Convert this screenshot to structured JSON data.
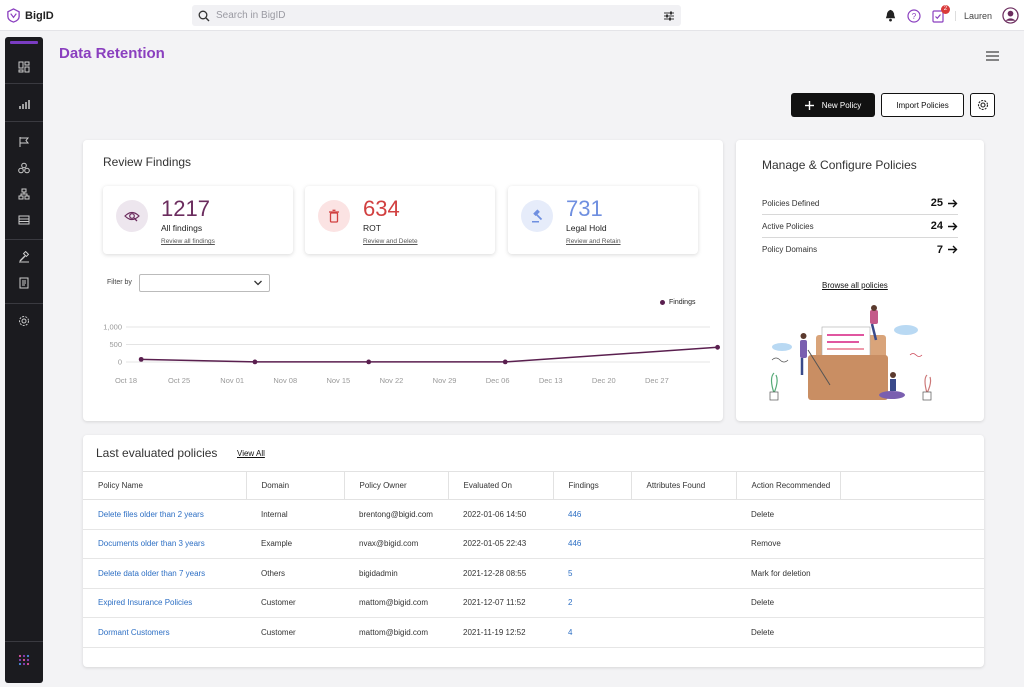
{
  "app": {
    "name": "BigID"
  },
  "search": {
    "placeholder": "Search in BigID"
  },
  "header": {
    "user": "Lauren",
    "notification_badge": "2"
  },
  "page": {
    "title": "Data Retention"
  },
  "toolbar": {
    "new_policy": "New Policy",
    "import_policies": "Import Policies"
  },
  "review": {
    "title": "Review Findings",
    "stats": [
      {
        "value": "1217",
        "label": "All findings",
        "link": "Review all findings",
        "color": "#6b2c5e",
        "bg": "#ede6ee"
      },
      {
        "value": "634",
        "label": "ROT",
        "link": "Review and Delete",
        "color": "#d14040",
        "bg": "#fbe3e3"
      },
      {
        "value": "731",
        "label": "Legal Hold",
        "link": "Review and Retain",
        "color": "#6f8fe0",
        "bg": "#e6ecfa"
      }
    ],
    "filter_label": "Filter by",
    "filter_value": ""
  },
  "chart_data": {
    "type": "line",
    "series": [
      {
        "name": "Findings",
        "color": "#5a1f4f",
        "points": [
          {
            "x": "2021-10-20",
            "y": 75
          },
          {
            "x": "2021-11-04",
            "y": 3
          },
          {
            "x": "2021-11-19",
            "y": 3
          },
          {
            "x": "2021-12-07",
            "y": 3
          },
          {
            "x": "2022-01-04",
            "y": 420
          }
        ]
      }
    ],
    "x_ticks": [
      "Oct 18",
      "Oct 25",
      "Nov 01",
      "Nov 08",
      "Nov 15",
      "Nov 22",
      "Nov 29",
      "Dec 06",
      "Dec 13",
      "Dec 20",
      "Dec 27"
    ],
    "y_ticks": [
      "1,000",
      "500",
      "0"
    ],
    "ylim": [
      0,
      1000
    ],
    "legend": "top-right",
    "grid": true
  },
  "manage": {
    "title": "Manage & Configure Policies",
    "rows": [
      {
        "label": "Policies Defined",
        "value": "25"
      },
      {
        "label": "Active Policies",
        "value": "24"
      },
      {
        "label": "Policy Domains",
        "value": "7"
      }
    ],
    "browse": "Browse all policies"
  },
  "policies": {
    "title": "Last evaluated policies",
    "view_all": "View All",
    "columns": [
      "Policy Name",
      "Domain",
      "Policy Owner",
      "Evaluated On",
      "Findings",
      "Attributes Found",
      "Action Recommended"
    ],
    "rows": [
      [
        "Delete files older than 2 years",
        "Internal",
        "brentong@bigid.com",
        "2022-01-06 14:50",
        "446",
        "",
        "Delete"
      ],
      [
        "Documents older than 3 years",
        "Example",
        "nvax@bigid.com",
        "2022-01-05 22:43",
        "446",
        "",
        "Remove"
      ],
      [
        "Delete data older than 7 years",
        "Others",
        "bigidadmin",
        "2021-12-28 08:55",
        "5",
        "",
        "Mark for deletion"
      ],
      [
        "Expired Insurance Policies",
        "Customer",
        "mattom@bigid.com",
        "2021-12-07 11:52",
        "2",
        "",
        "Delete"
      ],
      [
        "Dormant Customers",
        "Customer",
        "mattom@bigid.com",
        "2021-11-19 12:52",
        "4",
        "",
        "Delete"
      ]
    ]
  }
}
